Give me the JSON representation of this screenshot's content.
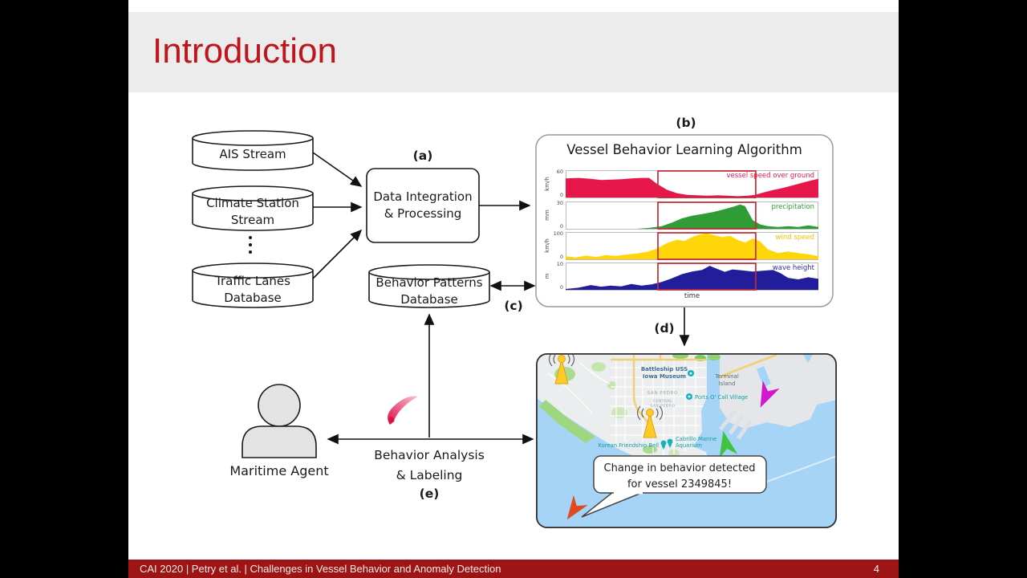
{
  "slide": {
    "title": "Introduction",
    "footer_text": "CAI 2020 | Petry et al. | Challenges in Vessel Behavior and Anomaly Detection",
    "page_number": "4",
    "colors": {
      "accent_red": "#bd161d",
      "footer_bg": "#9c1413",
      "header_bg": "#ececec"
    }
  },
  "diagram": {
    "ais_label": "AIS Stream",
    "climate_line1": "Climate Station",
    "climate_line2": "Stream",
    "traffic_line1": "Traffic Lanes",
    "traffic_line2": "Database",
    "processing_line1": "Data Integration",
    "processing_line2": "& Processing",
    "patterns_line1": "Behavior Patterns",
    "patterns_line2": "Database",
    "agent_label": "Maritime Agent",
    "analysis_line1": "Behavior Analysis",
    "analysis_line2": "& Labeling",
    "step_a": "(a)",
    "step_b": "(b)",
    "step_c": "(c)",
    "step_d": "(d)",
    "step_e": "(e)"
  },
  "learning_box": {
    "title": "Vessel Behavior Learning Algorithm"
  },
  "chart_data": {
    "type": "multi-area",
    "xlabel": "time",
    "highlight_span": [
      0.365,
      0.752
    ],
    "highlight_color": "#c42b35",
    "charts": [
      {
        "name": "vessel speed over ground",
        "unit": "km/h",
        "ymax": 60,
        "yticks": [
          "60",
          "0"
        ],
        "color": "#e8174b",
        "label_color": "#e8174b",
        "x": [
          0,
          0.05,
          0.1,
          0.14,
          0.18,
          0.22,
          0.26,
          0.3,
          0.33,
          0.36,
          0.4,
          0.44,
          0.48,
          0.52,
          0.56,
          0.6,
          0.64,
          0.68,
          0.72,
          0.75,
          0.78,
          0.82,
          0.86,
          0.9,
          0.95,
          1.0
        ],
        "y": [
          44,
          45,
          43,
          40,
          41,
          42,
          44,
          45,
          45,
          32,
          18,
          10,
          6,
          5,
          4,
          5,
          4,
          3,
          4,
          6,
          11,
          17,
          22,
          28,
          36,
          43
        ]
      },
      {
        "name": "precipitation",
        "unit": "mm",
        "ymax": 30,
        "yticks": [
          "30",
          "0"
        ],
        "color": "#2f9c35",
        "label_color": "#2f9c35",
        "x": [
          0,
          0.1,
          0.2,
          0.28,
          0.33,
          0.38,
          0.42,
          0.46,
          0.5,
          0.54,
          0.58,
          0.62,
          0.66,
          0.69,
          0.71,
          0.74,
          0.77,
          0.8,
          0.84,
          0.88,
          0.92,
          0.96,
          1.0
        ],
        "y": [
          0,
          0,
          0,
          0,
          1,
          3,
          7,
          12,
          15,
          17,
          19,
          22,
          25,
          28,
          26,
          10,
          5,
          3,
          2,
          3,
          2,
          4,
          2
        ]
      },
      {
        "name": "wind speed",
        "unit": "km/h",
        "ymax": 100,
        "yticks": [
          "100",
          "0"
        ],
        "color": "#ffd60a",
        "label_color": "#f2c200",
        "x": [
          0,
          0.04,
          0.08,
          0.12,
          0.16,
          0.2,
          0.24,
          0.28,
          0.32,
          0.36,
          0.4,
          0.44,
          0.47,
          0.5,
          0.53,
          0.56,
          0.59,
          0.62,
          0.65,
          0.68,
          0.71,
          0.74,
          0.77,
          0.8,
          0.84,
          0.88,
          0.92,
          0.96,
          1.0
        ],
        "y": [
          12,
          7,
          14,
          9,
          16,
          13,
          18,
          22,
          28,
          40,
          62,
          75,
          70,
          85,
          95,
          99,
          92,
          85,
          90,
          74,
          64,
          80,
          68,
          38,
          24,
          30,
          24,
          19,
          12
        ]
      },
      {
        "name": "wave height",
        "unit": "m",
        "ymax": 10,
        "yticks": [
          "10",
          "0"
        ],
        "color": "#211d9b",
        "label_color": "#2e2ea6",
        "x": [
          0,
          0.05,
          0.1,
          0.14,
          0.18,
          0.22,
          0.26,
          0.3,
          0.34,
          0.38,
          0.42,
          0.46,
          0.5,
          0.54,
          0.57,
          0.6,
          0.63,
          0.66,
          0.7,
          0.74,
          0.78,
          0.82,
          0.85,
          0.88,
          0.92,
          0.96,
          1.0
        ],
        "y": [
          0.3,
          0.8,
          1.8,
          1.2,
          1.6,
          1.3,
          2.2,
          1.6,
          2.1,
          3.0,
          4.4,
          6.0,
          7.0,
          7.6,
          9.2,
          8.0,
          6.9,
          7.8,
          7.4,
          7.0,
          7.3,
          7.6,
          6.4,
          4.6,
          4.0,
          4.8,
          4.2
        ]
      }
    ]
  },
  "map": {
    "labels": {
      "battleship_line1": "Battleship USS",
      "battleship_line2": "Iowa Museum",
      "terminal_line1": "Terminal",
      "terminal_line2": "Island",
      "san_pedro": "SAN PEDRO",
      "central_line1": "CENTRAL",
      "central_line2": "SAN PEDRO",
      "ports": "Ports O' Call Village",
      "cabrillo_line1": "Cabrillo Marine",
      "cabrillo_line2": "Aquarium",
      "korean": "Korean Friendship Bell"
    },
    "bubble_line1": "Change in behavior detected",
    "bubble_line2": "for vessel 2349845!",
    "marker_colors": {
      "antenna": "#ffca28",
      "magenta": "#d417ce",
      "green": "#3ec43e",
      "red": "#e2491c"
    }
  }
}
